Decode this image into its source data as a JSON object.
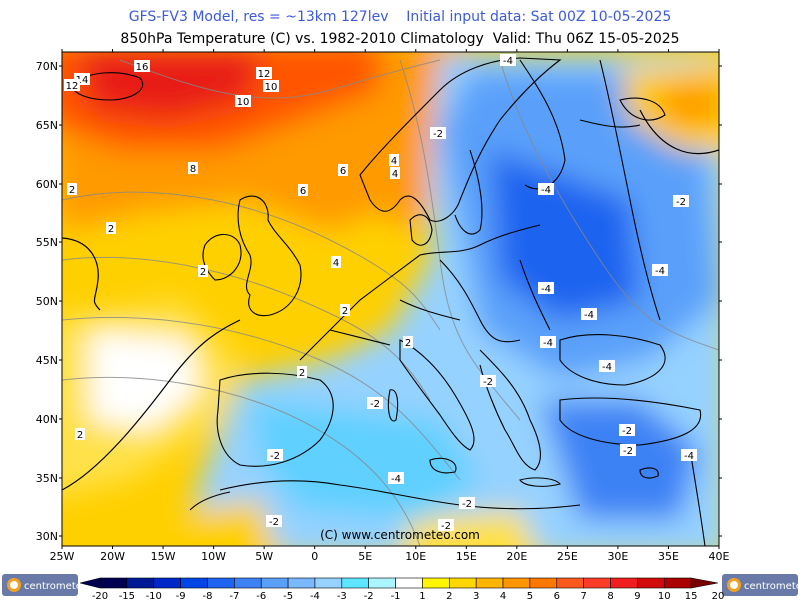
{
  "header": {
    "line1": "GFS-FV3 Model, res = ~13km 127lev    Initial input data: Sat 00Z 10-05-2025",
    "line2": "850hPa Temperature (C) vs. 1982-2010 Climatology  Valid: Thu 06Z 15-05-2025"
  },
  "map": {
    "lat_labels": [
      "70N",
      "65N",
      "60N",
      "55N",
      "50N",
      "45N",
      "40N",
      "35N",
      "30N"
    ],
    "lon_labels": [
      "25W",
      "20W",
      "15W",
      "10W",
      "5W",
      "0",
      "5E",
      "10E",
      "15E",
      "20E",
      "25E",
      "30E",
      "35E",
      "40E"
    ],
    "watermark": "(C) www.centrometeo.com",
    "contour_labels": [
      "16",
      "12",
      "10",
      "14",
      "12",
      "10",
      "8",
      "6",
      "6",
      "4",
      "2",
      "4",
      "2",
      "2",
      "4",
      "2",
      "2",
      "2",
      "2",
      "-2",
      "-2",
      "-2",
      "-4",
      "-4",
      "-4",
      "-4",
      "-2",
      "-2",
      "-2",
      "-2",
      "-4",
      "-4",
      "-2",
      "-4",
      "-4",
      "-2",
      "-4",
      "-2"
    ]
  },
  "colorbar": {
    "ticks": [
      "-20",
      "-15",
      "-10",
      "-9",
      "-8",
      "-7",
      "-6",
      "-5",
      "-4",
      "-3",
      "-2",
      "-1",
      "1",
      "2",
      "3",
      "4",
      "5",
      "6",
      "7",
      "8",
      "9",
      "10",
      "15",
      "20"
    ],
    "colors": [
      "#000050",
      "#001a96",
      "#0028c8",
      "#0046e6",
      "#1e64f0",
      "#3c82f5",
      "#5aa0fa",
      "#78b9ff",
      "#96d2ff",
      "#5fe6ff",
      "#aaf5ff",
      "#ffffff",
      "#fff500",
      "#ffd700",
      "#ffb400",
      "#ff9600",
      "#ff7800",
      "#ff5a1e",
      "#ff3c28",
      "#f01e1e",
      "#d20a0a",
      "#aa0000",
      "#780000"
    ],
    "brand_left": "centrometeo",
    "brand_right": "centrometeo"
  }
}
